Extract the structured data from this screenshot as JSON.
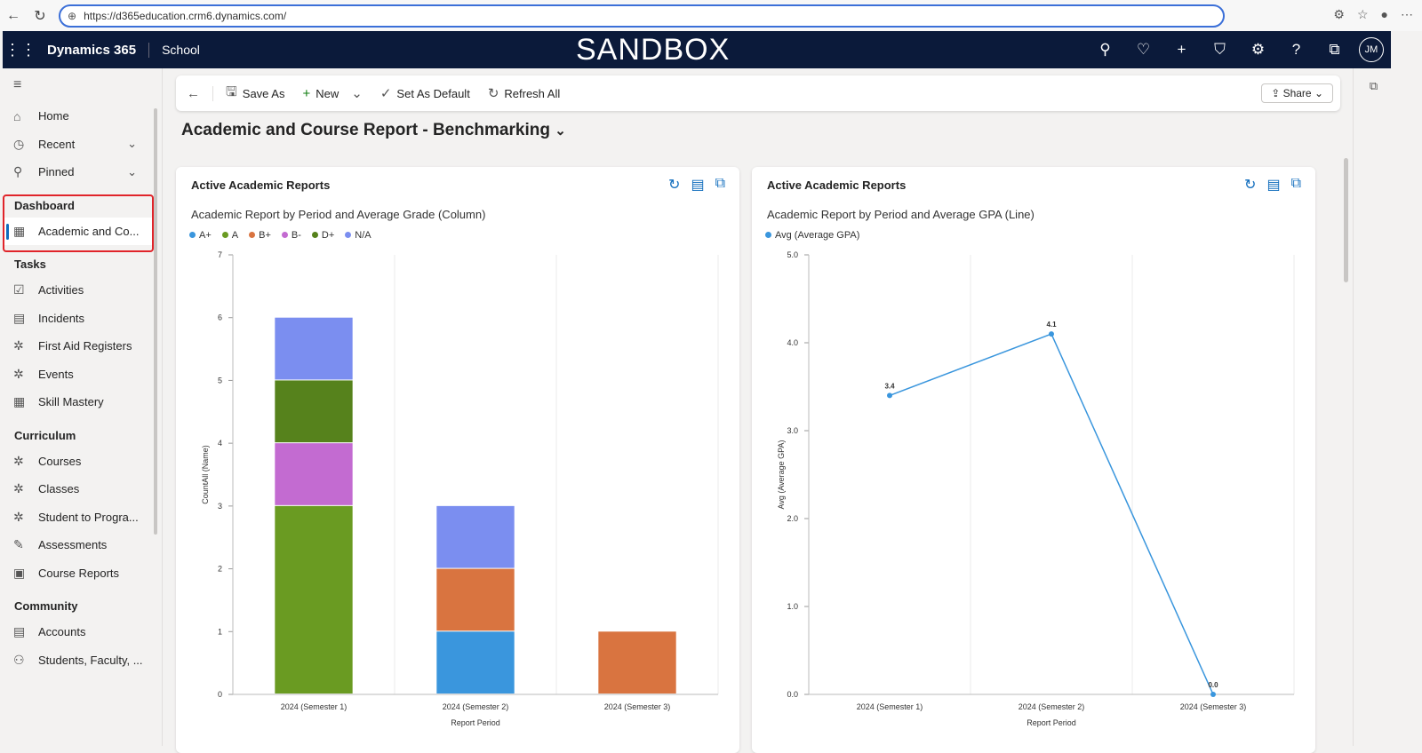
{
  "browser": {
    "url": "https://d365education.crm6.dynamics.com/"
  },
  "nav": {
    "brand": "Dynamics 365",
    "app": "School",
    "env": "SANDBOX",
    "avatar": "JM"
  },
  "sidebar": {
    "top": [
      {
        "label": "Home",
        "icon": "⌂"
      },
      {
        "label": "Recent",
        "icon": "◷",
        "chev": true
      },
      {
        "label": "Pinned",
        "icon": "⚲",
        "chev": true
      }
    ],
    "groups": [
      {
        "title": "Dashboard",
        "items": [
          {
            "label": "Academic and Co...",
            "icon": "▦",
            "selected": true
          }
        ]
      },
      {
        "title": "Tasks",
        "items": [
          {
            "label": "Activities",
            "icon": "☑"
          },
          {
            "label": "Incidents",
            "icon": "▤"
          },
          {
            "label": "First Aid Registers",
            "icon": "✲"
          },
          {
            "label": "Events",
            "icon": "✲"
          },
          {
            "label": "Skill Mastery",
            "icon": "▦"
          }
        ]
      },
      {
        "title": "Curriculum",
        "items": [
          {
            "label": "Courses",
            "icon": "✲"
          },
          {
            "label": "Classes",
            "icon": "✲"
          },
          {
            "label": "Student to Progra...",
            "icon": "✲"
          },
          {
            "label": "Assessments",
            "icon": "✎"
          },
          {
            "label": "Course Reports",
            "icon": "▣"
          }
        ]
      },
      {
        "title": "Community",
        "items": [
          {
            "label": "Accounts",
            "icon": "▤"
          },
          {
            "label": "Students, Faculty, ...",
            "icon": "⚇"
          }
        ]
      }
    ]
  },
  "toolbar": {
    "save_as": "Save As",
    "new": "New",
    "set_default": "Set As Default",
    "refresh_all": "Refresh All",
    "share": "Share"
  },
  "page_title": "Academic and Course Report - Benchmarking",
  "cards": [
    {
      "title": "Active Academic Reports",
      "subtitle": "Academic Report by Period and Average Grade (Column)"
    },
    {
      "title": "Active Academic Reports",
      "subtitle": "Academic Report by Period and Average GPA (Line)"
    }
  ],
  "chart_data": [
    {
      "type": "bar",
      "stacked": true,
      "categories": [
        "2024 (Semester 1)",
        "2024 (Semester 2)",
        "2024 (Semester 3)"
      ],
      "series": [
        {
          "name": "A+",
          "color": "#3a96dd",
          "values": [
            0,
            1,
            0
          ]
        },
        {
          "name": "A",
          "color": "#6a9b22",
          "values": [
            3,
            0,
            0
          ]
        },
        {
          "name": "B+",
          "color": "#d97440",
          "values": [
            0,
            1,
            1
          ]
        },
        {
          "name": "B-",
          "color": "#c36bd1",
          "values": [
            1,
            0,
            0
          ]
        },
        {
          "name": "D+",
          "color": "#56821c",
          "values": [
            1,
            0,
            0
          ]
        },
        {
          "name": "N/A",
          "color": "#7b8ef0",
          "values": [
            1,
            1,
            0
          ]
        }
      ],
      "xlabel": "Report Period",
      "ylabel": "CountAll (Name)",
      "ylim": [
        0,
        7
      ],
      "yticks": [
        "0",
        "1",
        "2",
        "3",
        "4",
        "5",
        "6",
        "7"
      ],
      "legend": "top-left",
      "grid": true
    },
    {
      "type": "line",
      "categories": [
        "2024 (Semester 1)",
        "2024 (Semester 2)",
        "2024 (Semester 3)"
      ],
      "series": [
        {
          "name": "Avg (Average GPA)",
          "color": "#3a96dd",
          "values": [
            3.4,
            4.1,
            0.0
          ],
          "labels": [
            "3.4",
            "4.1",
            "0.0"
          ]
        }
      ],
      "xlabel": "Report Period",
      "ylabel": "Avg (Average GPA)",
      "ylim": [
        0,
        5
      ],
      "yticks": [
        "0.0",
        "1.0",
        "2.0",
        "3.0",
        "4.0",
        "5.0"
      ],
      "legend": "top-left",
      "grid": true
    }
  ]
}
